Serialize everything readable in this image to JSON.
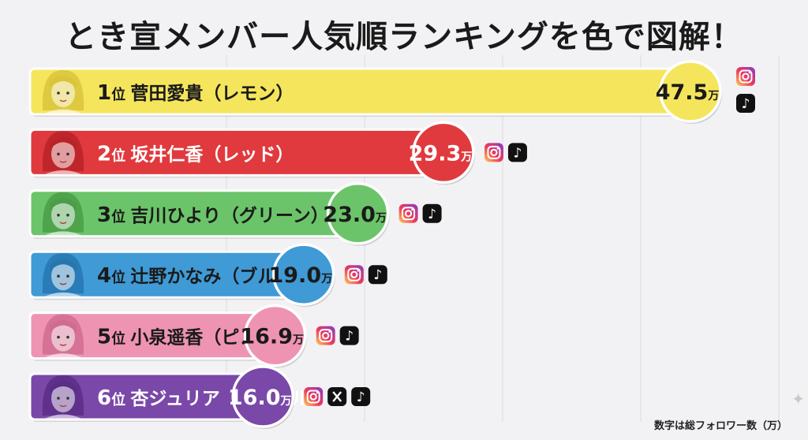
{
  "title": "とき宣メンバー人気順ランキングを色で図解！",
  "note": "数字は総フォロワー数（万）",
  "chart_data": {
    "type": "bar",
    "orientation": "horizontal",
    "unit": "万",
    "xlim": [
      0,
      55
    ],
    "grid": true,
    "categories": [
      "1位 菅田愛貴（レモン）",
      "2位 坂井仁香（レッド）",
      "3位 吉川ひより（グリーン）",
      "4位 辻野かなみ（ブルー）",
      "5位 小泉遥香（ピンク）",
      "6位 杏ジュリア（パープル）"
    ],
    "rows": [
      {
        "rank": "1位",
        "name": "菅田愛貴（レモン）",
        "value": 47.5,
        "value_label": "47.5",
        "color": "#f4e55c",
        "dark": "#d9c43a",
        "text_color": "#1a1a1a",
        "platforms": [
          "instagram",
          "tiktok"
        ]
      },
      {
        "rank": "2位",
        "name": "坂井仁香（レッド）",
        "value": 29.3,
        "value_label": "29.3",
        "color": "#e03a3e",
        "dark": "#b82328",
        "text_color": "#ffffff",
        "platforms": [
          "instagram",
          "tiktok"
        ]
      },
      {
        "rank": "3位",
        "name": "吉川ひより（グリーン）",
        "value": 23.0,
        "value_label": "23.0",
        "color": "#6cc46a",
        "dark": "#4a9e48",
        "text_color": "#1a1a1a",
        "platforms": [
          "instagram",
          "tiktok"
        ]
      },
      {
        "rank": "4位",
        "name": "辻野かなみ（ブルー）",
        "value": 19.0,
        "value_label": "19.0",
        "color": "#3f9ad6",
        "dark": "#2677b0",
        "text_color": "#1a1a1a",
        "platforms": [
          "instagram",
          "tiktok"
        ]
      },
      {
        "rank": "5位",
        "name": "小泉遥香（ピンク）",
        "value": 16.9,
        "value_label": "16.9",
        "color": "#ee94b2",
        "dark": "#d06c90",
        "text_color": "#1a1a1a",
        "platforms": [
          "instagram",
          "tiktok"
        ]
      },
      {
        "rank": "6位",
        "name": "杏ジュリア（パープル）",
        "value": 16.0,
        "value_label": "16.0",
        "color": "#7a48a8",
        "dark": "#5a2e86",
        "text_color": "#ffffff",
        "platforms": [
          "instagram",
          "x",
          "tiktok"
        ]
      }
    ]
  }
}
